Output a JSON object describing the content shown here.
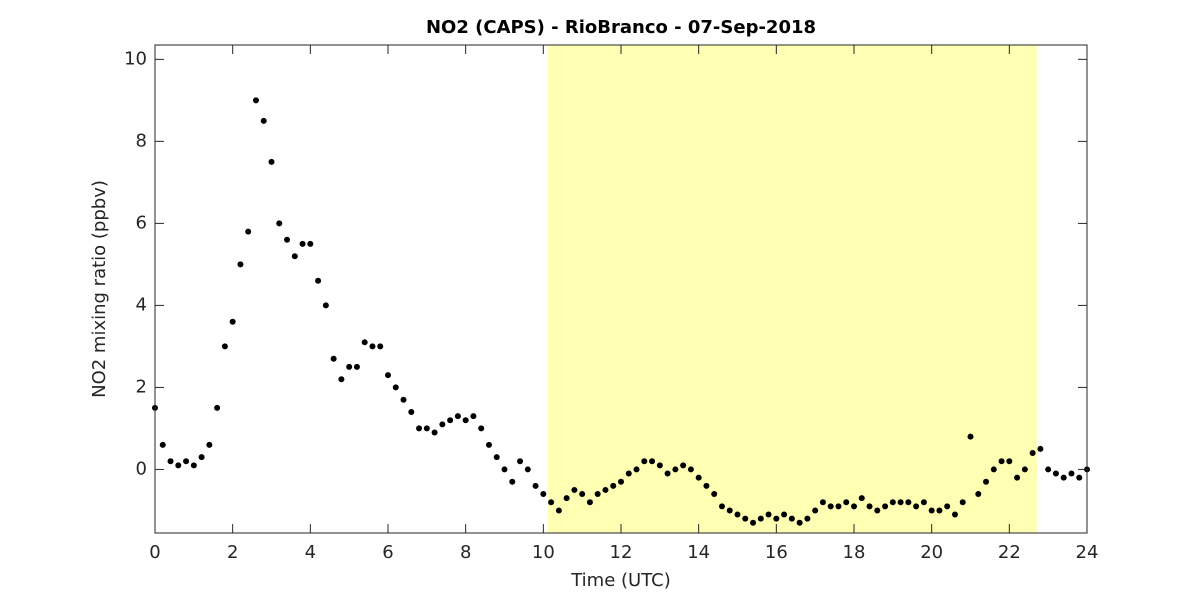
{
  "chart_data": {
    "type": "scatter",
    "title": "NO2 (CAPS) - RioBranco - 07-Sep-2018",
    "x_label": "Time (UTC)",
    "y_label": "NO2 mixing ratio (ppbv)",
    "xlim": [
      0,
      24
    ],
    "ylim": [
      -1.55,
      10.35
    ],
    "xticks": [
      0,
      2,
      4,
      6,
      8,
      10,
      12,
      14,
      16,
      18,
      20,
      22,
      24
    ],
    "yticks": [
      0,
      2,
      4,
      6,
      8,
      10
    ],
    "highlight_x": [
      10.12,
      22.71
    ],
    "highlight_color": "#ffffb3",
    "grid": false,
    "series": [
      {
        "color": "#000000",
        "x": [
          0,
          0.2,
          0.4,
          0.6,
          0.8,
          1,
          1.2,
          1.4,
          1.6,
          1.8,
          2,
          2.2,
          2.4,
          2.6,
          2.8,
          3,
          3.2,
          3.4,
          3.6,
          3.8,
          4,
          4.2,
          4.4,
          4.6,
          4.8,
          5,
          5.2,
          5.4,
          5.6,
          5.8,
          6,
          6.2,
          6.4,
          6.6,
          6.8,
          7,
          7.2,
          7.4,
          7.6,
          7.8,
          8,
          8.2,
          8.4,
          8.6,
          8.8,
          9,
          9.2,
          9.4,
          9.6,
          9.8,
          10,
          10.2,
          10.4,
          10.6,
          10.8,
          11,
          11.2,
          11.4,
          11.6,
          11.8,
          12,
          12.2,
          12.4,
          12.6,
          12.8,
          13,
          13.2,
          13.4,
          13.6,
          13.8,
          14,
          14.2,
          14.4,
          14.6,
          14.8,
          15,
          15.2,
          15.4,
          15.6,
          15.8,
          16,
          16.2,
          16.4,
          16.6,
          16.8,
          17,
          17.2,
          17.4,
          17.6,
          17.8,
          18,
          18.2,
          18.4,
          18.6,
          18.8,
          19,
          19.2,
          19.4,
          19.6,
          19.8,
          20,
          20.2,
          20.4,
          20.6,
          20.8,
          21,
          21.2,
          21.4,
          21.6,
          21.8,
          22,
          22.2,
          22.4,
          22.6,
          22.8,
          23,
          23.2,
          23.4,
          23.6,
          23.8,
          24
        ],
        "values": [
          1.5,
          0.6,
          0.2,
          0.1,
          0.2,
          0.1,
          0.3,
          0.6,
          1.5,
          3.0,
          3.6,
          5.0,
          5.8,
          9.0,
          8.5,
          7.5,
          6.0,
          5.6,
          5.2,
          5.5,
          5.5,
          4.6,
          4.0,
          2.7,
          2.2,
          2.5,
          2.5,
          3.1,
          3.0,
          3.0,
          2.3,
          2.0,
          1.7,
          1.4,
          1.0,
          1.0,
          0.9,
          1.1,
          1.2,
          1.3,
          1.2,
          1.3,
          1.0,
          0.6,
          0.3,
          0.0,
          -0.3,
          0.2,
          0.0,
          -0.4,
          -0.6,
          -0.8,
          -1.0,
          -0.7,
          -0.5,
          -0.6,
          -0.8,
          -0.6,
          -0.5,
          -0.4,
          -0.3,
          -0.1,
          0.0,
          0.2,
          0.2,
          0.1,
          -0.1,
          0.0,
          0.1,
          0.0,
          -0.2,
          -0.4,
          -0.6,
          -0.9,
          -1.0,
          -1.1,
          -1.2,
          -1.3,
          -1.2,
          -1.1,
          -1.2,
          -1.1,
          -1.2,
          -1.3,
          -1.2,
          -1.0,
          -0.8,
          -0.9,
          -0.9,
          -0.8,
          -0.9,
          -0.7,
          -0.9,
          -1.0,
          -0.9,
          -0.8,
          -0.8,
          -0.8,
          -0.9,
          -0.8,
          -1.0,
          -1.0,
          -0.9,
          -1.1,
          -0.8,
          0.8,
          -0.6,
          -0.3,
          0.0,
          0.2,
          0.2,
          -0.2,
          0.0,
          0.4,
          0.5,
          0.0,
          -0.1,
          -0.2,
          -0.1,
          -0.2,
          0.0
        ]
      }
    ]
  }
}
